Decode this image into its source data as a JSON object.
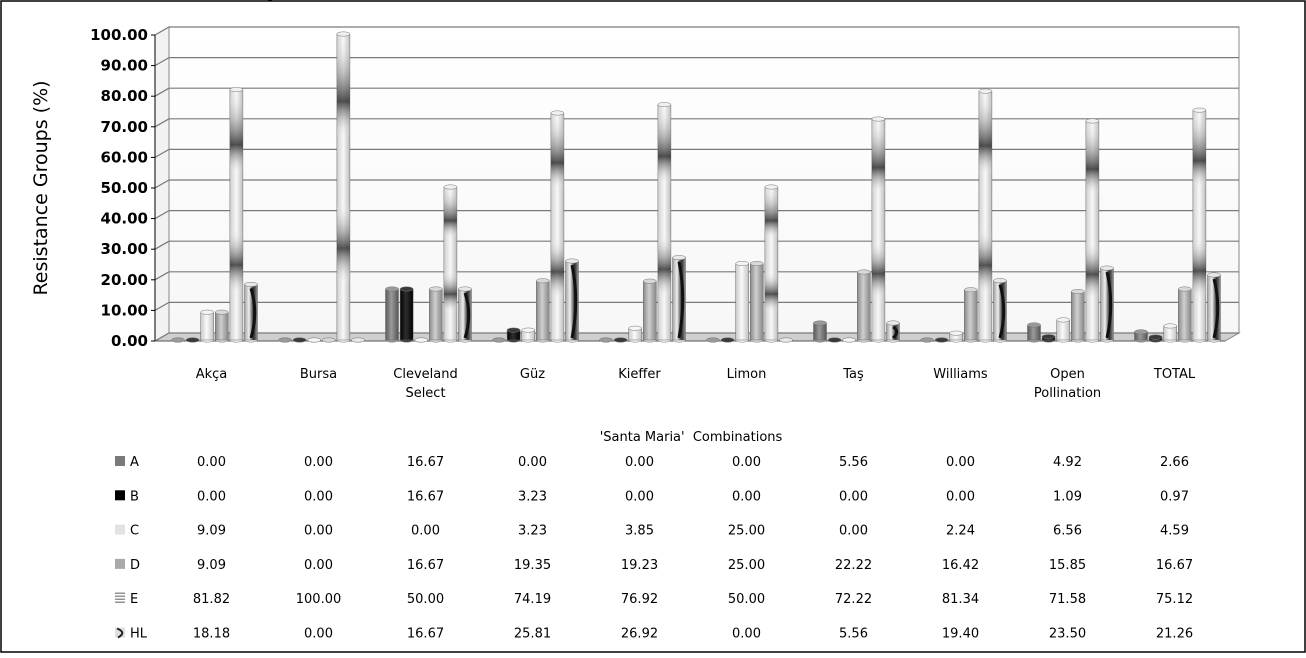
{
  "chart_data": {
    "type": "bar",
    "caption_fragment": "ugh",
    "title": "",
    "ylabel": "Resistance Groups (%)",
    "xlabel": "'Santa Maria'  Combinations",
    "ylim": [
      0,
      100
    ],
    "yticks": [
      "0.00",
      "10.00",
      "20.00",
      "30.00",
      "40.00",
      "50.00",
      "60.00",
      "70.00",
      "80.00",
      "90.00",
      "100.00"
    ],
    "grid": true,
    "categories": [
      "Akça",
      "Bursa",
      "Cleveland Select",
      "Güz",
      "Kieffer",
      "Limon",
      "Taş",
      "Williams",
      "Open Pollination",
      "TOTAL"
    ],
    "series": [
      {
        "name": "A",
        "color": "#7a7a7a",
        "values": [
          0.0,
          0.0,
          16.67,
          0.0,
          0.0,
          0.0,
          5.56,
          0.0,
          4.92,
          2.66
        ],
        "labels": [
          "0.00",
          "0.00",
          "16.67",
          "0.00",
          "0.00",
          "0.00",
          "5.56",
          "0.00",
          "4.92",
          "2.66"
        ]
      },
      {
        "name": "B",
        "color": "#000000",
        "values": [
          0.0,
          0.0,
          16.67,
          3.23,
          0.0,
          0.0,
          0.0,
          0.0,
          1.09,
          0.97
        ],
        "labels": [
          "0.00",
          "0.00",
          "16.67",
          "3.23",
          "0.00",
          "0.00",
          "0.00",
          "0.00",
          "1.09",
          "0.97"
        ]
      },
      {
        "name": "C",
        "color": "#e2e2e2",
        "values": [
          9.09,
          0.0,
          0.0,
          3.23,
          3.85,
          25.0,
          0.0,
          2.24,
          6.56,
          4.59
        ],
        "labels": [
          "9.09",
          "0.00",
          "0.00",
          "3.23",
          "3.85",
          "25.00",
          "0.00",
          "2.24",
          "6.56",
          "4.59"
        ]
      },
      {
        "name": "D",
        "color": "#a9a9a9",
        "values": [
          9.09,
          0.0,
          16.67,
          19.35,
          19.23,
          25.0,
          22.22,
          16.42,
          15.85,
          16.67
        ],
        "labels": [
          "9.09",
          "0.00",
          "16.67",
          "19.35",
          "19.23",
          "25.00",
          "22.22",
          "16.42",
          "15.85",
          "16.67"
        ]
      },
      {
        "name": "E",
        "color": "#c4c4c4",
        "values": [
          81.82,
          100.0,
          50.0,
          74.19,
          76.92,
          50.0,
          72.22,
          81.34,
          71.58,
          75.12
        ],
        "labels": [
          "81.82",
          "100.00",
          "50.00",
          "74.19",
          "76.92",
          "50.00",
          "72.22",
          "81.34",
          "71.58",
          "75.12"
        ]
      },
      {
        "name": "HL",
        "color": "#d0d0d0",
        "values": [
          18.18,
          0.0,
          16.67,
          25.81,
          26.92,
          0.0,
          5.56,
          19.4,
          23.5,
          21.26
        ],
        "labels": [
          "18.18",
          "0.00",
          "16.67",
          "25.81",
          "26.92",
          "0.00",
          "5.56",
          "19.40",
          "23.50",
          "21.26"
        ]
      }
    ]
  }
}
